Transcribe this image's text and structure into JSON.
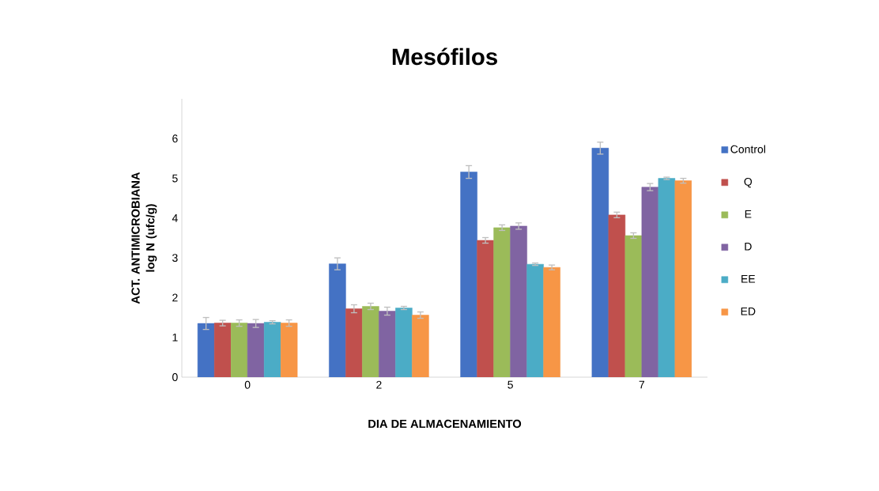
{
  "chart_data": {
    "type": "bar",
    "title": "Mesófilos",
    "xlabel": "DIA DE ALMACENAMIENTO",
    "ylabel": "ACT. ANTIMICROBIANA log N (ufc/g)",
    "categories": [
      "0",
      "2",
      "5",
      "7"
    ],
    "series": [
      {
        "name": "Control",
        "color": "#4472c4",
        "values": [
          1.35,
          2.85,
          5.16,
          5.76
        ],
        "errors": [
          0.15,
          0.15,
          0.16,
          0.15
        ]
      },
      {
        "name": "Q",
        "color": "#c0504d",
        "values": [
          1.36,
          1.72,
          3.44,
          4.08
        ],
        "errors": [
          0.07,
          0.1,
          0.07,
          0.07
        ]
      },
      {
        "name": "E",
        "color": "#9bbb59",
        "values": [
          1.36,
          1.78,
          3.76,
          3.56
        ],
        "errors": [
          0.08,
          0.08,
          0.07,
          0.07
        ]
      },
      {
        "name": "D",
        "color": "#8064a2",
        "values": [
          1.35,
          1.66,
          3.8,
          4.78
        ],
        "errors": [
          0.1,
          0.1,
          0.08,
          0.09
        ]
      },
      {
        "name": "EE",
        "color": "#4bacc6",
        "values": [
          1.38,
          1.74,
          2.84,
          5.0
        ],
        "errors": [
          0.04,
          0.04,
          0.03,
          0.03
        ]
      },
      {
        "name": "ED",
        "color": "#f79646",
        "values": [
          1.36,
          1.56,
          2.76,
          4.94
        ],
        "errors": [
          0.08,
          0.08,
          0.06,
          0.06
        ]
      }
    ],
    "ylim": [
      0,
      7
    ],
    "yticks": [
      0,
      1,
      2,
      3,
      4,
      5,
      6
    ],
    "grid": false,
    "legend": "right"
  }
}
